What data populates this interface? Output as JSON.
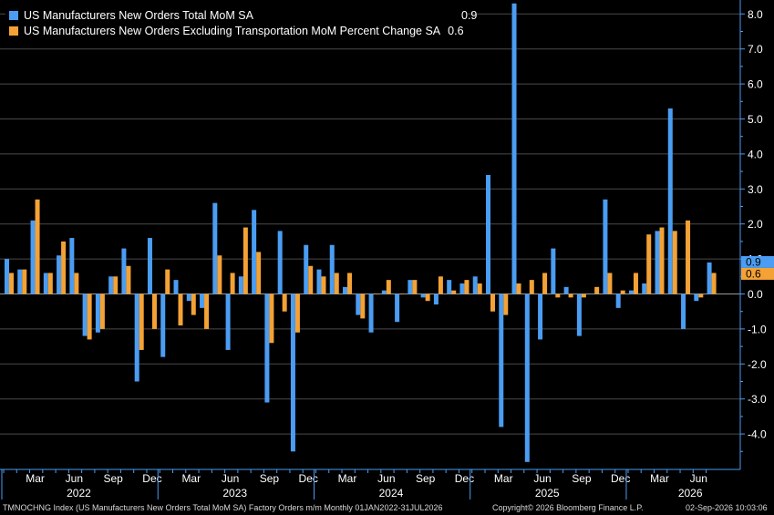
{
  "colors": {
    "series1": "#4a9df2",
    "series2": "#f4a235",
    "background": "#000000",
    "grid": "#4a4a4a",
    "axis": "#4a9df2"
  },
  "legend": {
    "items": [
      {
        "name": "US Manufacturers New Orders Total MoM SA",
        "last": "0.9"
      },
      {
        "name": "US Manufacturers New Orders Excluding Transportation MoM Percent Change SA",
        "last": "0.6"
      }
    ]
  },
  "footer": {
    "left": "TMNOCHNG Index (US Manufacturers New Orders Total MoM SA) Factory Orders m/m Monthly 01JAN2022-31JUL2026",
    "center": "Copyright© 2026 Bloomberg Finance L.P.",
    "right": "02-Sep-2026 10:03:06"
  },
  "chart_data": {
    "type": "bar",
    "x": [
      "2022-01",
      "2022-02",
      "2022-03",
      "2022-04",
      "2022-05",
      "2022-06",
      "2022-07",
      "2022-08",
      "2022-09",
      "2022-10",
      "2022-11",
      "2022-12",
      "2023-01",
      "2023-02",
      "2023-03",
      "2023-04",
      "2023-05",
      "2023-06",
      "2023-07",
      "2023-08",
      "2023-09",
      "2023-10",
      "2023-11",
      "2023-12",
      "2024-01",
      "2024-02",
      "2024-03",
      "2024-04",
      "2024-05",
      "2024-06",
      "2024-07",
      "2024-08",
      "2024-09",
      "2024-10",
      "2024-11",
      "2024-12",
      "2025-01",
      "2025-02",
      "2025-03",
      "2025-04",
      "2025-05",
      "2025-06",
      "2025-07",
      "2025-08",
      "2025-09",
      "2025-10",
      "2025-11",
      "2025-12",
      "2026-01",
      "2026-02",
      "2026-03",
      "2026-04",
      "2026-05",
      "2026-06",
      "2026-07"
    ],
    "series": [
      {
        "name": "US Manufacturers New Orders Total MoM SA",
        "values": [
          1.0,
          0.7,
          2.1,
          0.6,
          1.1,
          1.6,
          -1.2,
          -1.1,
          0.5,
          1.3,
          -2.5,
          1.6,
          -1.8,
          0.4,
          -0.2,
          -0.4,
          2.6,
          -1.6,
          0.5,
          2.4,
          -3.1,
          1.8,
          -4.5,
          1.4,
          0.7,
          1.4,
          0.2,
          -0.6,
          -1.1,
          0.1,
          -0.8,
          0.4,
          -0.1,
          -0.3,
          0.4,
          0.3,
          0.5,
          3.4,
          -3.8,
          8.3,
          -4.8,
          -1.3,
          1.3,
          0.2,
          -1.2,
          0.0,
          2.7,
          -0.4,
          0.1,
          0.3,
          1.8,
          5.3,
          -1.0,
          -0.2,
          0.9
        ]
      },
      {
        "name": "US Manufacturers New Orders Excluding Transportation MoM Percent Change SA",
        "values": [
          0.6,
          0.7,
          2.7,
          0.6,
          1.5,
          0.6,
          -1.3,
          -1.0,
          0.5,
          0.8,
          -1.6,
          -1.0,
          0.7,
          -0.9,
          -0.6,
          -1.0,
          1.1,
          0.6,
          1.9,
          1.2,
          -1.4,
          -0.5,
          -1.1,
          0.8,
          0.5,
          0.6,
          0.6,
          -0.7,
          0.0,
          0.4,
          0.0,
          0.4,
          -0.2,
          0.5,
          0.1,
          0.4,
          0.3,
          -0.5,
          -0.6,
          0.3,
          0.4,
          0.6,
          -0.1,
          -0.1,
          -0.1,
          0.2,
          0.6,
          0.1,
          0.6,
          1.7,
          1.9,
          1.8,
          2.1,
          -0.1,
          0.6
        ]
      }
    ],
    "ylim": [
      -5,
      8.5
    ],
    "yticks": [
      -4.0,
      -3.0,
      -2.0,
      -1.0,
      0.0,
      1.0,
      2.0,
      3.0,
      4.0,
      5.0,
      6.0,
      7.0,
      8.0
    ],
    "ytick_labels": [
      "-4.0",
      "-3.0",
      "-2.0",
      "-1.0",
      "0.0",
      "1.0",
      "2.0",
      "3.0",
      "4.0",
      "5.0",
      "6.0",
      "7.0",
      "8.0"
    ],
    "month_labels": [
      {
        "label": "Mar",
        "at": 2
      },
      {
        "label": "Jun",
        "at": 5
      },
      {
        "label": "Sep",
        "at": 8
      },
      {
        "label": "Dec",
        "at": 11
      },
      {
        "label": "Mar",
        "at": 14
      },
      {
        "label": "Jun",
        "at": 17
      },
      {
        "label": "Sep",
        "at": 20
      },
      {
        "label": "Dec",
        "at": 23
      },
      {
        "label": "Mar",
        "at": 26
      },
      {
        "label": "Jun",
        "at": 29
      },
      {
        "label": "Sep",
        "at": 32
      },
      {
        "label": "Dec",
        "at": 35
      },
      {
        "label": "Mar",
        "at": 38
      },
      {
        "label": "Jun",
        "at": 41
      },
      {
        "label": "Sep",
        "at": 44
      },
      {
        "label": "Dec",
        "at": 47
      },
      {
        "label": "Mar",
        "at": 50
      },
      {
        "label": "Jun",
        "at": 53
      }
    ],
    "year_labels": [
      {
        "label": "2022",
        "at": 5.5
      },
      {
        "label": "2023",
        "at": 17.5
      },
      {
        "label": "2024",
        "at": 29.5
      },
      {
        "label": "2025",
        "at": 41.5
      },
      {
        "label": "2026",
        "at": 52.5
      }
    ],
    "last_value_tags": [
      "0.9",
      "0.6"
    ],
    "grid": true,
    "legend_position": "top-left"
  }
}
